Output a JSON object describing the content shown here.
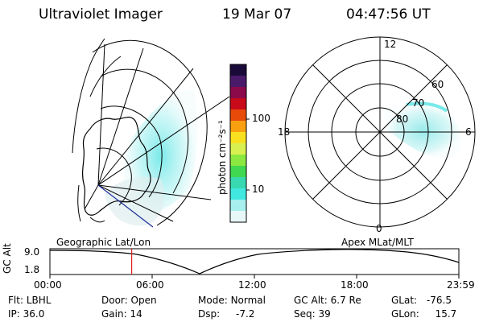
{
  "header": {
    "instrument": "Ultraviolet Imager",
    "date": "19 Mar 07",
    "time": "04:47:56 UT"
  },
  "colorbar": {
    "unit_label": "photon cm⁻²s⁻¹",
    "ticks": [
      "100",
      "10"
    ],
    "colors": [
      "#1a0a3a",
      "#4a1a6a",
      "#8a0a4a",
      "#c80a1a",
      "#e84a0a",
      "#f8a010",
      "#f8e020",
      "#d8f050",
      "#8ae840",
      "#40d850",
      "#38d8b0",
      "#40e8e0",
      "#a8f0f0",
      "#e8f8f8"
    ]
  },
  "geo_panel": {
    "label": "Geographic Lat/Lon"
  },
  "polar_panel": {
    "label": "Apex  MLat/MLT",
    "mlt_labels": {
      "top": "12",
      "left": "18",
      "right": "6",
      "bottom": "0"
    },
    "lat_labels": [
      "60",
      "70",
      "80"
    ]
  },
  "timeline": {
    "axis_label": "GC Alt",
    "y_ticks": [
      "9.0",
      "1.8"
    ],
    "x_ticks": [
      "00:00",
      "06:00",
      "12:00",
      "18:00",
      "23:59"
    ],
    "current_time_fraction": 0.2
  },
  "info": {
    "row1": [
      {
        "key": "Flt:",
        "value": "LBHL"
      },
      {
        "key": "Door:",
        "value": "Open"
      },
      {
        "key": "Mode:",
        "value": "Normal"
      },
      {
        "key": "GC Alt:",
        "value": "6.7 Re"
      },
      {
        "key": "GLat:",
        "value": "-76.5"
      }
    ],
    "row2": [
      {
        "key": "IP:",
        "value": "36.0"
      },
      {
        "key": "Gain:",
        "value": "14"
      },
      {
        "key": "Dsp:",
        "value": "-7.2"
      },
      {
        "key": "Seq:",
        "value": "39"
      },
      {
        "key": "GLon:",
        "value": "15.7"
      }
    ]
  },
  "accent": {
    "aurora": "#40e0e0",
    "marker": "#e02020",
    "line": "#1a2a9a"
  }
}
